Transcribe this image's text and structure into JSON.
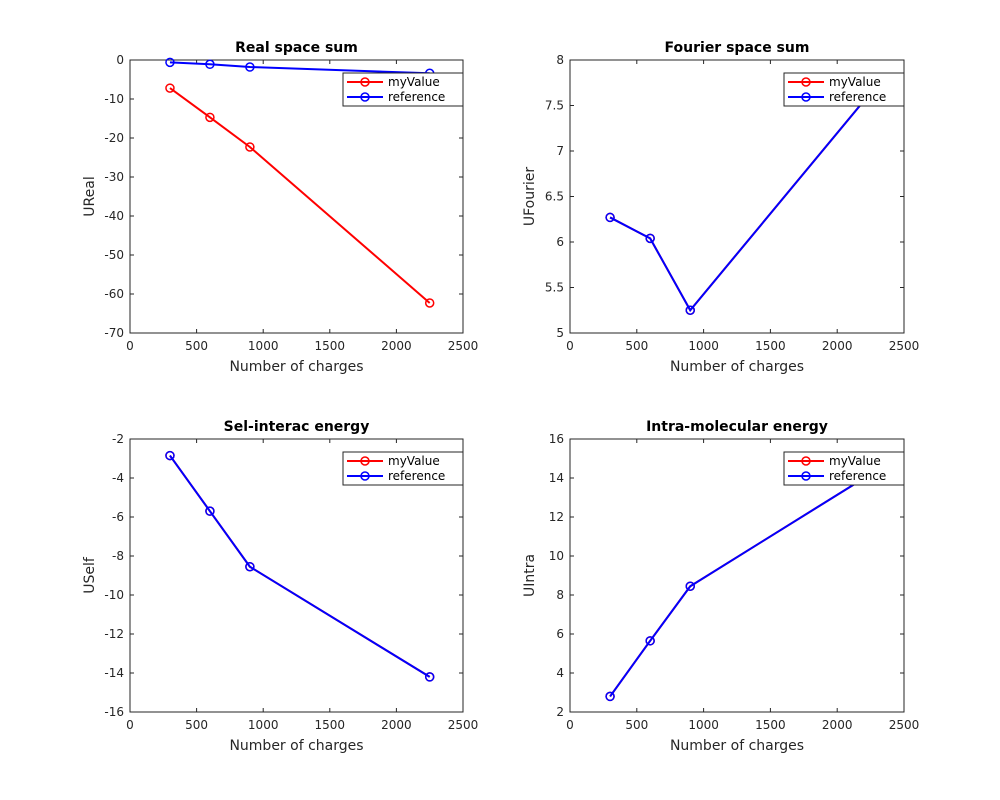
{
  "chart_data": [
    {
      "type": "line",
      "title": "Real space sum",
      "xlabel": "Number of charges",
      "ylabel": "UReal",
      "xlim": [
        0,
        2500
      ],
      "ylim": [
        -70,
        0
      ],
      "xticks": [
        0,
        500,
        1000,
        1500,
        2000,
        2500
      ],
      "yticks": [
        -70,
        -60,
        -50,
        -40,
        -30,
        -20,
        -10,
        0
      ],
      "legend_position": "top-right",
      "series": [
        {
          "name": "myValue",
          "color": "#ff0000",
          "x": [
            300,
            600,
            900,
            2250
          ],
          "y": [
            -7.2,
            -14.7,
            -22.3,
            -62.3
          ]
        },
        {
          "name": "reference",
          "color": "#0000ff",
          "x": [
            300,
            600,
            900,
            2250
          ],
          "y": [
            -0.6,
            -1.1,
            -1.8,
            -3.4
          ]
        }
      ]
    },
    {
      "type": "line",
      "title": "Fourier space sum",
      "xlabel": "Number of charges",
      "ylabel": "UFourier",
      "xlim": [
        0,
        2500
      ],
      "ylim": [
        5,
        8
      ],
      "xticks": [
        0,
        500,
        1000,
        1500,
        2000,
        2500
      ],
      "yticks": [
        5,
        5.5,
        6,
        6.5,
        7,
        7.5,
        8
      ],
      "legend_position": "top-right",
      "series": [
        {
          "name": "myValue",
          "color": "#ff0000",
          "x": [
            300,
            600,
            900,
            2250
          ],
          "y": [
            6.27,
            6.04,
            5.25,
            7.64
          ]
        },
        {
          "name": "reference",
          "color": "#0000ff",
          "x": [
            300,
            600,
            900,
            2250
          ],
          "y": [
            6.27,
            6.04,
            5.25,
            7.64
          ]
        }
      ]
    },
    {
      "type": "line",
      "title": "Sel-interac energy",
      "xlabel": "Number of charges",
      "ylabel": "USelf",
      "xlim": [
        0,
        2500
      ],
      "ylim": [
        -16,
        -2
      ],
      "xticks": [
        0,
        500,
        1000,
        1500,
        2000,
        2500
      ],
      "yticks": [
        -16,
        -14,
        -12,
        -10,
        -8,
        -6,
        -4,
        -2
      ],
      "legend_position": "top-right",
      "series": [
        {
          "name": "myValue",
          "color": "#ff0000",
          "x": [
            300,
            600,
            900,
            2250
          ],
          "y": [
            -2.85,
            -5.7,
            -8.55,
            -14.2
          ]
        },
        {
          "name": "reference",
          "color": "#0000ff",
          "x": [
            300,
            600,
            900,
            2250
          ],
          "y": [
            -2.85,
            -5.7,
            -8.55,
            -14.2
          ]
        }
      ]
    },
    {
      "type": "line",
      "title": "Intra-molecular energy",
      "xlabel": "Number of charges",
      "ylabel": "UIntra",
      "xlim": [
        0,
        2500
      ],
      "ylim": [
        2,
        16
      ],
      "xticks": [
        0,
        500,
        1000,
        1500,
        2000,
        2500
      ],
      "yticks": [
        2,
        4,
        6,
        8,
        10,
        12,
        14,
        16
      ],
      "legend_position": "top-right",
      "series": [
        {
          "name": "myValue",
          "color": "#ff0000",
          "x": [
            300,
            600,
            900,
            2250
          ],
          "y": [
            2.8,
            5.65,
            8.45,
            14.2
          ]
        },
        {
          "name": "reference",
          "color": "#0000ff",
          "x": [
            300,
            600,
            900,
            2250
          ],
          "y": [
            2.8,
            5.65,
            8.45,
            14.2
          ]
        }
      ]
    }
  ]
}
